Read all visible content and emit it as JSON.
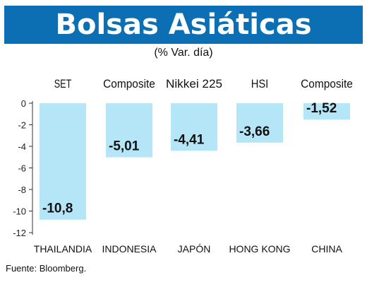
{
  "header": {
    "title": "Bolsas Asiáticas",
    "subtitle": "(% Var. día)"
  },
  "source": "Fuente: Bloomberg.",
  "colors": {
    "title_bg": "#0c6fb4",
    "bar": "#b5e6f7"
  },
  "chart_data": {
    "type": "bar",
    "title": "Bolsas Asiáticas",
    "subtitle": "(% Var. día)",
    "index_names": [
      "SET",
      "Composite",
      "Nikkei 225",
      "HSI",
      "Composite"
    ],
    "categories": [
      "THAILANDIA",
      "INDONESIA",
      "JAPÓN",
      "HONG KONG",
      "CHINA"
    ],
    "values": [
      -10.8,
      -5.01,
      -4.41,
      -3.66,
      -1.52
    ],
    "value_labels": [
      "-10,8",
      "-5,01",
      "-4,41",
      "-3,66",
      "-1,52"
    ],
    "y_ticks": [
      0,
      -2,
      -4,
      -6,
      -8,
      -10,
      -12
    ],
    "ylim": [
      -12,
      0
    ],
    "grid": false,
    "legend": "none"
  }
}
